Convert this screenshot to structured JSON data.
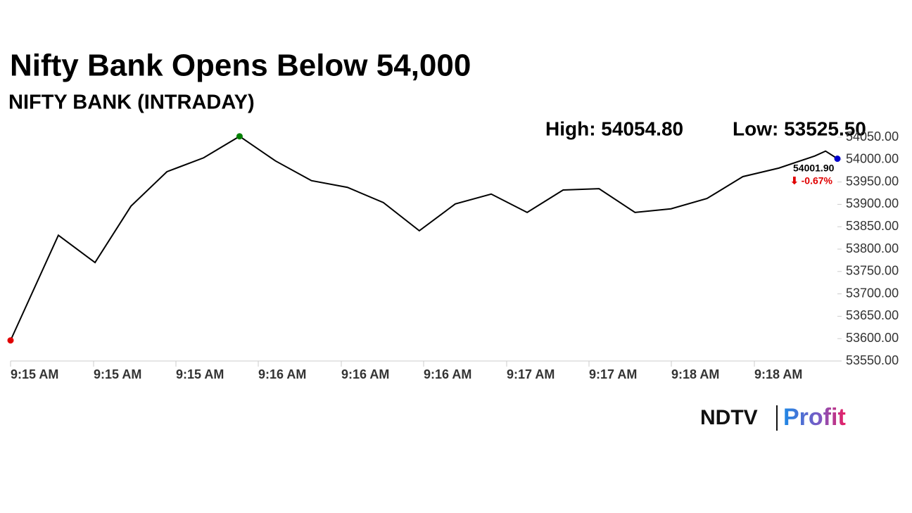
{
  "chart_data": {
    "type": "line",
    "title": "Nifty Bank Opens Below 54,000",
    "subtitle": "NIFTY BANK (INTRADAY)",
    "high_label": "High: 54054.80",
    "low_label": "Low: 53525.50",
    "last_label": "54001.90",
    "change_label": "⬇ -0.67%",
    "x": [
      0,
      1.33,
      2.35,
      3.35,
      4.35,
      5.37,
      6.37,
      7.37,
      8.37,
      9.37,
      10.37,
      11.37,
      12.37,
      13.37,
      14.37,
      15.37,
      16.37,
      17.37,
      18.37,
      19.37,
      20.37,
      21.37,
      22.37,
      22.67,
      23
    ],
    "series": [
      {
        "color": "#000000",
        "values": [
          53596,
          53831,
          53770,
          53896,
          53973,
          54004,
          54052,
          53997,
          53953,
          53938,
          53904,
          53841,
          53901,
          53923,
          53882,
          53932,
          53935,
          53882,
          53890,
          53913,
          53962,
          53981,
          54008,
          54019,
          54002
        ]
      }
    ],
    "marker_colors": {
      "first": "#e00000",
      "high": "#008000",
      "last": "#0000cc"
    },
    "xlim": [
      0,
      23
    ],
    "xticks": [
      {
        "value": 0,
        "label": "9:15 AM"
      },
      {
        "value": 2.31,
        "label": "9:15 AM"
      },
      {
        "value": 4.6,
        "label": "9:15 AM"
      },
      {
        "value": 6.89,
        "label": "9:16 AM"
      },
      {
        "value": 9.2,
        "label": "9:16 AM"
      },
      {
        "value": 11.49,
        "label": "9:16 AM"
      },
      {
        "value": 13.8,
        "label": "9:17 AM"
      },
      {
        "value": 16.09,
        "label": "9:17 AM"
      },
      {
        "value": 18.38,
        "label": "9:18 AM"
      },
      {
        "value": 20.69,
        "label": "9:18 AM"
      }
    ],
    "ylim": [
      53550,
      54050
    ],
    "yticks": [
      {
        "value": 53550,
        "label": "53550.00"
      },
      {
        "value": 53600,
        "label": "53600.00"
      },
      {
        "value": 53650,
        "label": "53650.00"
      },
      {
        "value": 53700,
        "label": "53700.00"
      },
      {
        "value": 53750,
        "label": "53750.00"
      },
      {
        "value": 53800,
        "label": "53800.00"
      },
      {
        "value": 53850,
        "label": "53850.00"
      },
      {
        "value": 53900,
        "label": "53900.00"
      },
      {
        "value": 53950,
        "label": "53950.00"
      },
      {
        "value": 54000,
        "label": "54000.00"
      },
      {
        "value": 54050,
        "label": "54050.00"
      }
    ],
    "logo": {
      "left": "NDTV",
      "right": "Profit"
    }
  }
}
